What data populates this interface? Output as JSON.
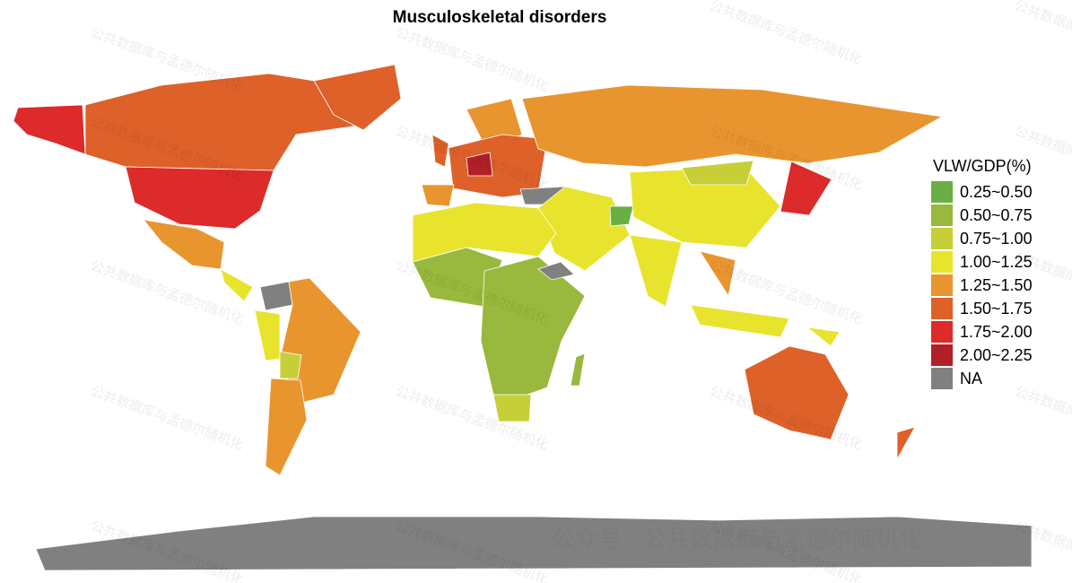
{
  "map": {
    "title": "Musculoskeletal disorders",
    "legend": {
      "title": "VLW/GDP(%)",
      "items": [
        {
          "label": "0.25~0.50",
          "color": "#6aaf45"
        },
        {
          "label": "0.50~0.75",
          "color": "#98b93d"
        },
        {
          "label": "0.75~1.00",
          "color": "#c6cf38"
        },
        {
          "label": "1.00~1.25",
          "color": "#e8e42e"
        },
        {
          "label": "1.25~1.50",
          "color": "#e9952f"
        },
        {
          "label": "1.50~1.75",
          "color": "#de6129"
        },
        {
          "label": "1.75~2.00",
          "color": "#dd2a2a"
        },
        {
          "label": "2.00~2.25",
          "color": "#b11f28"
        },
        {
          "label": "NA",
          "color": "#808080"
        }
      ]
    },
    "watermark": "公共数据库与孟德尔随机化",
    "footer": "公众号 · 公共数据库与孟德尔随机化"
  }
}
